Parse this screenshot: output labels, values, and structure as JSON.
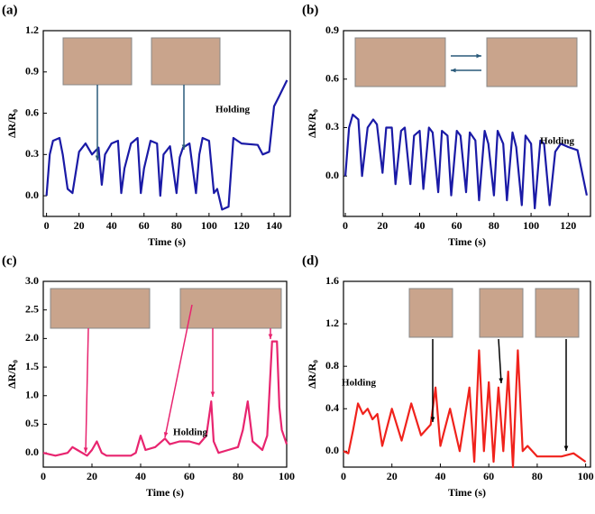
{
  "chart_data": [
    {
      "type": "line",
      "panel_label": "(a)",
      "xlabel": "Time (s)",
      "ylabel": "ΔR/R₀",
      "annotation": "Holding",
      "color": "#1a1aa6",
      "xlim": [
        -2,
        150
      ],
      "xticks": [
        0,
        20,
        40,
        60,
        80,
        100,
        120,
        140
      ],
      "ylim": [
        -0.15,
        1.2
      ],
      "yticks": [
        {
          "value": 0,
          "label": "0.0"
        },
        0.3,
        0.6,
        0.9,
        1.2
      ],
      "x": [
        0,
        2,
        4,
        8,
        10,
        13,
        16,
        20,
        24,
        28,
        32,
        34,
        36,
        40,
        44,
        46,
        48,
        52,
        56,
        58,
        60,
        64,
        68,
        70,
        72,
        76,
        80,
        82,
        84,
        88,
        92,
        94,
        96,
        100,
        103,
        105,
        108,
        112,
        115,
        120,
        130,
        133,
        137,
        140,
        143,
        148
      ],
      "values": [
        0.0,
        0.3,
        0.4,
        0.42,
        0.3,
        0.05,
        0.02,
        0.32,
        0.38,
        0.3,
        0.35,
        0.08,
        0.3,
        0.38,
        0.4,
        0.02,
        0.2,
        0.38,
        0.42,
        0.02,
        0.2,
        0.4,
        0.38,
        0.0,
        0.3,
        0.36,
        0.02,
        0.28,
        0.35,
        0.38,
        0.02,
        0.3,
        0.42,
        0.4,
        0.02,
        0.05,
        -0.1,
        -0.08,
        0.42,
        0.38,
        0.37,
        0.3,
        0.32,
        0.65,
        0.72,
        0.84
      ]
    },
    {
      "type": "line",
      "panel_label": "(b)",
      "xlabel": "Time (s)",
      "ylabel": "ΔR/R₀",
      "annotation": "Holding",
      "color": "#1a1aa6",
      "xlim": [
        -1,
        132
      ],
      "xticks": [
        0,
        20,
        40,
        60,
        80,
        100,
        120
      ],
      "ylim": [
        -0.25,
        0.9
      ],
      "yticks": [
        {
          "value": 0,
          "label": "0.0"
        },
        0.3,
        0.6,
        0.9
      ],
      "x": [
        0,
        2,
        4,
        7,
        9,
        12,
        15,
        17,
        20,
        22,
        25,
        27,
        30,
        32,
        35,
        37,
        40,
        42,
        45,
        47,
        50,
        52,
        55,
        57,
        60,
        62,
        65,
        67,
        70,
        72,
        75,
        77,
        80,
        82,
        85,
        87,
        90,
        92,
        95,
        97,
        100,
        102,
        105,
        107,
        110,
        113,
        116,
        120,
        125,
        130
      ],
      "values": [
        0.0,
        0.3,
        0.38,
        0.35,
        0.0,
        0.3,
        0.35,
        0.32,
        0.02,
        0.3,
        0.3,
        -0.05,
        0.28,
        0.3,
        -0.05,
        0.25,
        0.28,
        -0.08,
        0.3,
        0.27,
        -0.1,
        0.28,
        0.25,
        -0.12,
        0.28,
        0.25,
        -0.1,
        0.27,
        0.22,
        -0.15,
        0.28,
        0.2,
        -0.12,
        0.28,
        0.2,
        -0.15,
        0.27,
        0.18,
        -0.18,
        0.25,
        0.2,
        -0.2,
        0.22,
        0.2,
        -0.18,
        0.15,
        0.2,
        0.18,
        0.16,
        -0.12
      ]
    },
    {
      "type": "line",
      "panel_label": "(c)",
      "xlabel": "Time (s)",
      "ylabel": "ΔR/R₀",
      "annotation": "Holding",
      "color": "#e8246f",
      "xlim": [
        0,
        100
      ],
      "xticks": [
        0,
        20,
        40,
        60,
        80,
        100
      ],
      "ylim": [
        -0.25,
        3.0
      ],
      "yticks": [
        {
          "value": 0,
          "label": "0.0"
        },
        0.5,
        {
          "value": 1,
          "label": "1.0"
        },
        1.5,
        {
          "value": 2,
          "label": "2.0"
        },
        2.5,
        {
          "value": 3,
          "label": "3.0"
        }
      ],
      "x": [
        0,
        5,
        10,
        12,
        14,
        16,
        18,
        20,
        22,
        24,
        26,
        30,
        36,
        38,
        40,
        42,
        46,
        50,
        52,
        56,
        60,
        64,
        67,
        69,
        70,
        72,
        76,
        80,
        82,
        84,
        86,
        90,
        92,
        94,
        96,
        97,
        98,
        100
      ],
      "values": [
        0,
        -0.05,
        0.0,
        0.1,
        0.05,
        0.0,
        -0.05,
        0.05,
        0.2,
        0.0,
        -0.05,
        -0.05,
        -0.05,
        0.0,
        0.3,
        0.05,
        0.1,
        0.25,
        0.15,
        0.2,
        0.2,
        0.15,
        0.3,
        0.9,
        0.2,
        0.0,
        0.05,
        0.1,
        0.4,
        0.9,
        0.2,
        0.05,
        0.3,
        1.95,
        1.95,
        0.8,
        0.4,
        0.15
      ]
    },
    {
      "type": "line",
      "panel_label": "(d)",
      "xlabel": "Time (s)",
      "ylabel": "ΔR/R₀",
      "annotation": "Holding",
      "color": "#f0221c",
      "xlim": [
        0,
        102
      ],
      "xticks": [
        0,
        20,
        40,
        60,
        80,
        100
      ],
      "ylim": [
        -0.15,
        1.6
      ],
      "yticks": [
        {
          "value": 0,
          "label": "0.0"
        },
        0.4,
        0.8,
        1.2,
        1.6
      ],
      "x": [
        0,
        2,
        4,
        6,
        8,
        10,
        12,
        14,
        16,
        20,
        24,
        28,
        32,
        36,
        38,
        40,
        44,
        48,
        52,
        54,
        56,
        58,
        60,
        62,
        64,
        66,
        68,
        70,
        72,
        74,
        76,
        80,
        85,
        90,
        95,
        100
      ],
      "values": [
        0,
        -0.02,
        0.2,
        0.45,
        0.35,
        0.4,
        0.3,
        0.35,
        0.05,
        0.4,
        0.1,
        0.45,
        0.15,
        0.25,
        0.6,
        0.05,
        0.4,
        0.0,
        0.6,
        -0.1,
        0.95,
        0.0,
        0.65,
        -0.1,
        0.6,
        0.0,
        0.75,
        -0.15,
        0.95,
        0.0,
        0.05,
        -0.05,
        -0.05,
        -0.05,
        -0.02,
        -0.1
      ]
    }
  ]
}
